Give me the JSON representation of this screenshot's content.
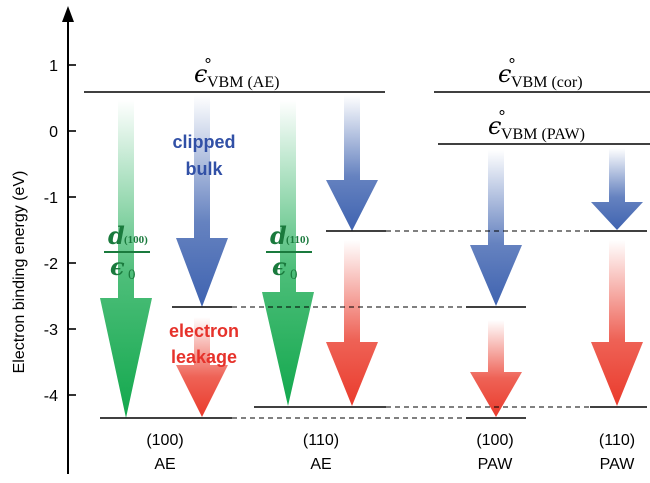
{
  "colors": {
    "axis": "#000000",
    "green": "#12a84d",
    "blue": "#3f63b0",
    "red": "#ea3b2c",
    "label_blue": "#3150a6",
    "label_red": "#e6322b",
    "label_green": "#1a7a3d"
  },
  "axis": {
    "label": "Electron binding energy (eV)",
    "ticks": [
      {
        "value": 1,
        "label": "1"
      },
      {
        "value": 0,
        "label": "0"
      },
      {
        "value": -1,
        "label": "-1"
      },
      {
        "value": -2,
        "label": "-2"
      },
      {
        "value": -3,
        "label": "-3"
      },
      {
        "value": -4,
        "label": "-4"
      }
    ]
  },
  "levels": {
    "vbm_ae": {
      "symbol": "ϵ",
      "sup": "∘",
      "sub": "VBM (AE)",
      "energy": 0.55
    },
    "vbm_cor": {
      "symbol": "ϵ",
      "sup": "∘",
      "sub": "VBM (cor)",
      "energy": 0.55
    },
    "vbm_paw": {
      "symbol": "ϵ",
      "sup": "∘",
      "sub": "VBM (PAW)",
      "energy": -0.22
    }
  },
  "annotations": {
    "clipped_line1": "clipped",
    "clipped_line2": "bulk",
    "leak_line1": "electron",
    "leak_line2": "leakage",
    "d100_num": "d",
    "d100_sub": "(100)",
    "d100_den": "ϵ",
    "d100_den_sub": "0",
    "d110_num": "d",
    "d110_sub": "(110)",
    "d110_den": "ϵ",
    "d110_den_sub": "0"
  },
  "columns": [
    {
      "top": "(100)",
      "bottom": "AE"
    },
    {
      "top": "(110)",
      "bottom": "AE"
    },
    {
      "top": "(100)",
      "bottom": "PAW"
    },
    {
      "top": "(110)",
      "bottom": "PAW"
    }
  ],
  "energies": {
    "ae100_clipped": -2.67,
    "ae100_bottom": -4.33,
    "ae110_clipped": -1.53,
    "ae110_bottom": -4.16,
    "paw100_clipped": -2.67,
    "paw100_bottom": -4.33,
    "paw110_clipped": -1.53,
    "paw110_bottom": -4.16
  }
}
